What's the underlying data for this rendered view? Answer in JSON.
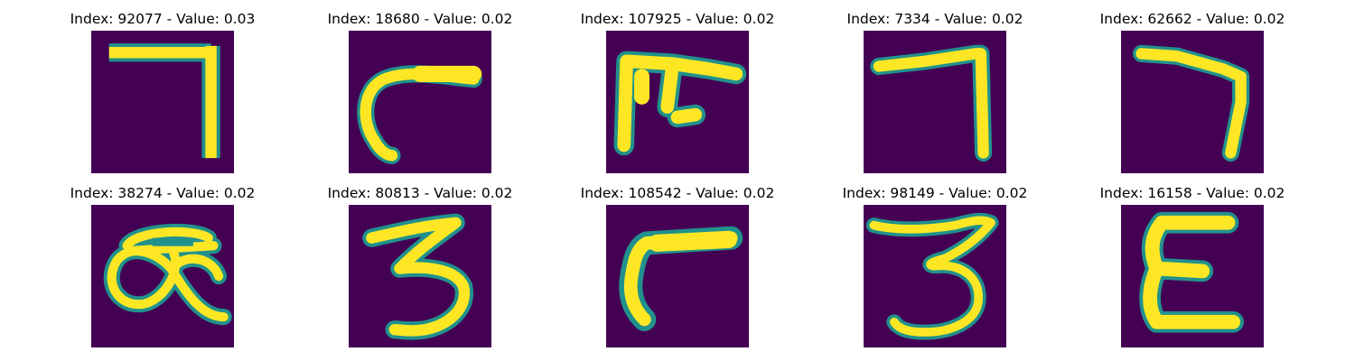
{
  "colors": {
    "background": "#440154",
    "stroke": "#fde725",
    "edge_teal": "#21918c",
    "edge_green": "#5ec962"
  },
  "chart_data": [
    {
      "type": "image",
      "title": "Index: 92077 - Value: 0.03",
      "index": 92077,
      "value": 0.03,
      "glyph": "seven-right-angle"
    },
    {
      "type": "image",
      "title": "Index: 18680 - Value: 0.02",
      "index": 18680,
      "value": 0.02,
      "glyph": "curved-hook"
    },
    {
      "type": "image",
      "title": "Index: 107925 - Value: 0.02",
      "index": 107925,
      "value": 0.02,
      "glyph": "comb-shape"
    },
    {
      "type": "image",
      "title": "Index: 7334 - Value: 0.02",
      "index": 7334,
      "value": 0.02,
      "glyph": "seven-tall"
    },
    {
      "type": "image",
      "title": "Index: 62662 - Value: 0.02",
      "index": 62662,
      "value": 0.02,
      "glyph": "seven-slanted"
    },
    {
      "type": "image",
      "title": "Index: 38274 - Value: 0.02",
      "index": 38274,
      "value": 0.02,
      "glyph": "loops"
    },
    {
      "type": "image",
      "title": "Index: 80813 - Value: 0.02",
      "index": 80813,
      "value": 0.02,
      "glyph": "three"
    },
    {
      "type": "image",
      "title": "Index: 108542 - Value: 0.02",
      "index": 108542,
      "value": 0.02,
      "glyph": "hook-thick"
    },
    {
      "type": "image",
      "title": "Index: 98149 - Value: 0.02",
      "index": 98149,
      "value": 0.02,
      "glyph": "three-wide"
    },
    {
      "type": "image",
      "title": "Index: 16158 - Value: 0.02",
      "index": 16158,
      "value": 0.02,
      "glyph": "e-shape"
    }
  ]
}
